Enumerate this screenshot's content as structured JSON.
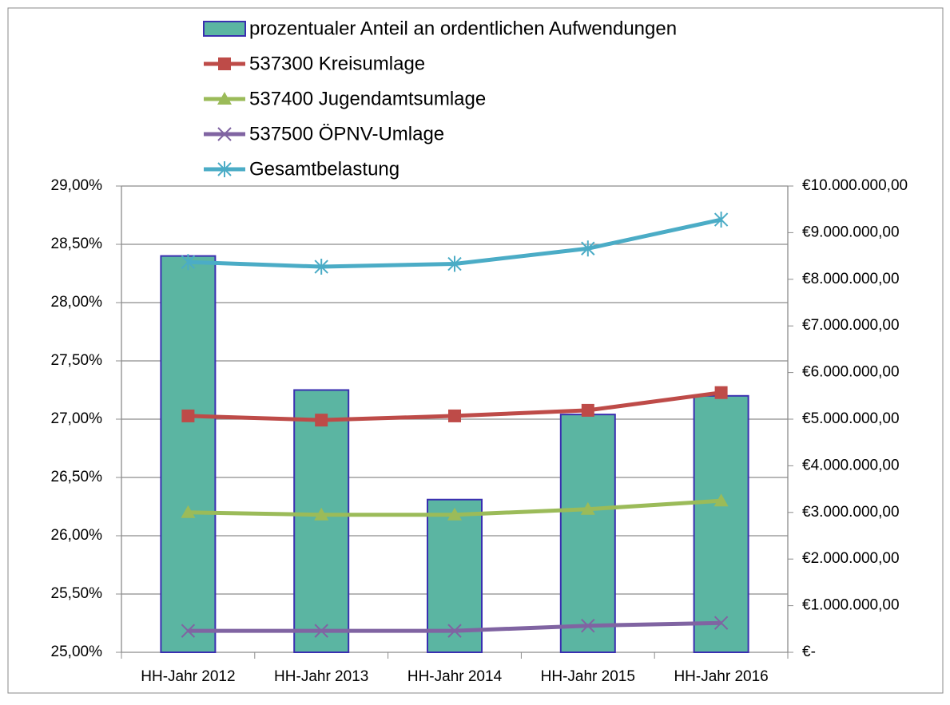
{
  "chart_data": {
    "type": "bar",
    "categories": [
      "HH-Jahr 2012",
      "HH-Jahr 2013",
      "HH-Jahr 2014",
      "HH-Jahr 2015",
      "HH-Jahr 2016"
    ],
    "series": [
      {
        "name": "prozentualer Anteil an ordentlichen Aufwendungen",
        "type": "bar",
        "color": "#5bb5a2",
        "edge": "#3a2fb0",
        "axis": "y",
        "values": [
          28.4,
          27.25,
          26.31,
          27.04,
          27.2
        ]
      },
      {
        "name": "537300 Kreisumlage",
        "type": "line",
        "marker": "square",
        "color": "#be4b48",
        "axis": "y2",
        "values": [
          5070000,
          4980000,
          5070000,
          5190000,
          5570000
        ]
      },
      {
        "name": "537400 Jugendamtsumlage",
        "type": "line",
        "marker": "triangle",
        "color": "#9bbb59",
        "axis": "y2",
        "values": [
          3000000,
          2950000,
          2950000,
          3070000,
          3250000
        ]
      },
      {
        "name": "537500 ÖPNV-Umlage",
        "type": "line",
        "marker": "x",
        "color": "#8064a2",
        "axis": "y2",
        "values": [
          460000,
          460000,
          460000,
          570000,
          630000
        ]
      },
      {
        "name": "Gesamtbelastung",
        "type": "line",
        "marker": "star",
        "color": "#4bacc6",
        "axis": "y2",
        "values": [
          8370000,
          8270000,
          8330000,
          8660000,
          9280000
        ]
      }
    ],
    "ylim": [
      25,
      29
    ],
    "yticks": [
      {
        "value": 25,
        "label": "25,00%"
      },
      {
        "value": 25.5,
        "label": "25,50%"
      },
      {
        "value": 26,
        "label": "26,00%"
      },
      {
        "value": 26.5,
        "label": "26,50%"
      },
      {
        "value": 27,
        "label": "27,00%"
      },
      {
        "value": 27.5,
        "label": "27,50%"
      },
      {
        "value": 28,
        "label": "28,00%"
      },
      {
        "value": 28.5,
        "label": "28,50%"
      },
      {
        "value": 29,
        "label": "29,00%"
      }
    ],
    "y2lim": [
      0,
      10000000
    ],
    "y2ticks": [
      {
        "value": 0,
        "label": "€-"
      },
      {
        "value": 1000000,
        "label": "€1.000.000,00"
      },
      {
        "value": 2000000,
        "label": "€2.000.000,00"
      },
      {
        "value": 3000000,
        "label": "€3.000.000,00"
      },
      {
        "value": 4000000,
        "label": "€4.000.000,00"
      },
      {
        "value": 5000000,
        "label": "€5.000.000,00"
      },
      {
        "value": 6000000,
        "label": "€6.000.000,00"
      },
      {
        "value": 7000000,
        "label": "€7.000.000,00"
      },
      {
        "value": 8000000,
        "label": "€8.000.000,00"
      },
      {
        "value": 9000000,
        "label": "€9.000.000,00"
      },
      {
        "value": 10000000,
        "label": "€10.000.000,00"
      }
    ],
    "grid": true,
    "legend": "top"
  }
}
